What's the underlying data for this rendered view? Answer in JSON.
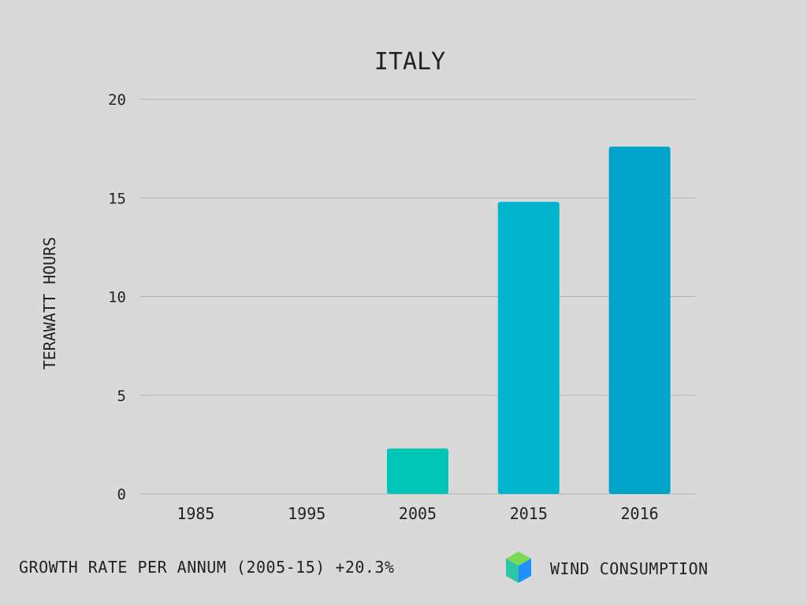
{
  "chart_data": {
    "type": "bar",
    "title": "ITALY",
    "xlabel": "",
    "ylabel": "TERAWATT HOURS",
    "categories": [
      "1985",
      "1995",
      "2005",
      "2015",
      "2016"
    ],
    "values": [
      0,
      0,
      2.3,
      14.8,
      17.6
    ],
    "bar_colors": [
      "#00c9b4",
      "#00c2b8",
      "#00c5b7",
      "#00b5cc",
      "#00a4c9"
    ],
    "ylim": [
      0,
      20
    ],
    "yticks": [
      0,
      5,
      10,
      15,
      20
    ],
    "grid": true,
    "series_name": "WIND CONSUMPTION"
  },
  "footer": {
    "growth_text": "GROWTH RATE PER ANNUM (2005-15) +20.3%"
  },
  "legend": {
    "label": "WIND CONSUMPTION",
    "icon": "cube-icon",
    "colors": {
      "top": "#7ed957",
      "left": "#2ec4a6",
      "right": "#1e90ff"
    }
  },
  "colors": {
    "background": "#d9d9d9",
    "gridline": "#b0b0b0",
    "text": "#222222"
  }
}
